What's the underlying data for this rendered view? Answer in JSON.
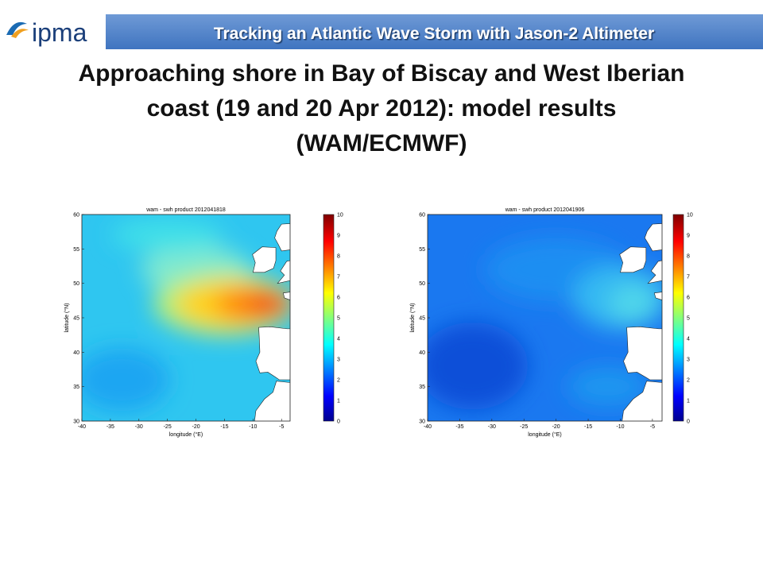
{
  "header": {
    "logo": "ipma",
    "banner": "Tracking an Atlantic Wave Storm with Jason-2 Altimeter"
  },
  "title": {
    "lines": [
      "Approaching shore in Bay of Biscay and West Iberian",
      "coast (19 and 20 Apr 2012):  model results",
      "(WAM/ECMWF)"
    ]
  },
  "maps": [
    {
      "title": "wam - swh product 2012041818",
      "xlabel": "longitude (°E)",
      "ylabel": "latitude (°N)",
      "xticks": [
        -40,
        -35,
        -30,
        -25,
        -20,
        -15,
        -10,
        -5
      ],
      "yticks": [
        60,
        55,
        50,
        45,
        40,
        35,
        30
      ],
      "colorbar_ticks": [
        10,
        9,
        8,
        7,
        6,
        5,
        4,
        3,
        2,
        1,
        0
      ]
    },
    {
      "title": "wam - swh product 2012041906",
      "xlabel": "longitude (°E)",
      "ylabel": "latitude (°N)",
      "xticks": [
        -40,
        -35,
        -30,
        -25,
        -20,
        -15,
        -10,
        -5
      ],
      "yticks": [
        60,
        55,
        50,
        45,
        40,
        35,
        30
      ],
      "colorbar_ticks": [
        10,
        9,
        8,
        7,
        6,
        5,
        4,
        3,
        2,
        1,
        0
      ]
    }
  ]
}
